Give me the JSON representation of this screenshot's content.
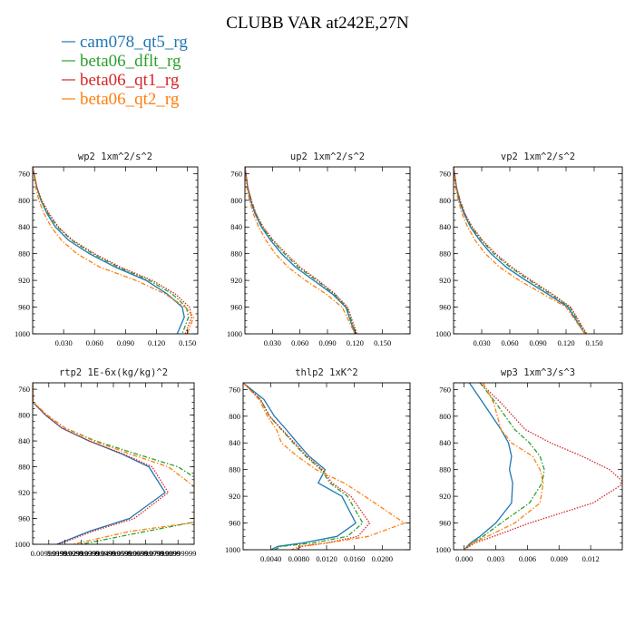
{
  "title": "CLUBB VAR at242E,27N",
  "legend": [
    {
      "label": "cam078_qt5_rg",
      "color": "#1f77b4",
      "dash": "solid"
    },
    {
      "label": "beta06_dflt_rg",
      "color": "#2ca02c",
      "dash": "dashdot"
    },
    {
      "label": "beta06_qt1_rg",
      "color": "#d62728",
      "dash": "dotted"
    },
    {
      "label": "beta06_qt2_rg",
      "color": "#ff7f0e",
      "dash": "dashdot"
    }
  ],
  "chart_data": [
    {
      "type": "line",
      "title": "wp2  1xm^2/s^2",
      "xlim": [
        0,
        0.16
      ],
      "ylim": [
        1000,
        750
      ],
      "y_inverted": true,
      "xticks": [
        0.03,
        0.06,
        0.09,
        0.12,
        0.15
      ],
      "xtick_labels": [
        "0.030",
        "0.060",
        "0.090",
        "0.120",
        "0.150"
      ],
      "yticks": [
        760,
        800,
        840,
        880,
        920,
        960,
        1000
      ],
      "ytick_labels": [
        "760",
        "800",
        "840",
        "880",
        "920",
        "960",
        "1000"
      ],
      "series": [
        {
          "x": [
            0.0,
            0.004,
            0.008,
            0.014,
            0.022,
            0.035,
            0.055,
            0.08,
            0.11,
            0.13,
            0.145,
            0.147,
            0.14
          ],
          "y": [
            750,
            780,
            800,
            820,
            840,
            860,
            880,
            900,
            920,
            940,
            960,
            975,
            1000
          ]
        },
        {
          "x": [
            0.0,
            0.004,
            0.008,
            0.015,
            0.024,
            0.038,
            0.058,
            0.083,
            0.113,
            0.135,
            0.149,
            0.151,
            0.145
          ],
          "y": [
            750,
            780,
            800,
            820,
            840,
            860,
            880,
            900,
            920,
            940,
            960,
            975,
            1000
          ]
        },
        {
          "x": [
            0.0,
            0.004,
            0.009,
            0.016,
            0.025,
            0.039,
            0.06,
            0.085,
            0.116,
            0.138,
            0.152,
            0.154,
            0.148
          ],
          "y": [
            750,
            780,
            800,
            820,
            840,
            860,
            880,
            900,
            920,
            940,
            960,
            975,
            1000
          ]
        },
        {
          "x": [
            0.0,
            0.003,
            0.006,
            0.011,
            0.018,
            0.028,
            0.043,
            0.065,
            0.1,
            0.128,
            0.148,
            0.156,
            0.15
          ],
          "y": [
            750,
            780,
            800,
            820,
            840,
            860,
            880,
            900,
            920,
            940,
            960,
            975,
            1000
          ]
        }
      ]
    },
    {
      "type": "line",
      "title": "up2  1xm^2/s^2",
      "xlim": [
        0,
        0.18
      ],
      "ylim": [
        1000,
        750
      ],
      "y_inverted": true,
      "xticks": [
        0.03,
        0.06,
        0.09,
        0.12,
        0.15
      ],
      "xtick_labels": [
        "0.030",
        "0.060",
        "0.090",
        "0.120",
        "0.150"
      ],
      "yticks": [
        760,
        800,
        840,
        880,
        920,
        960,
        1000
      ],
      "ytick_labels": [
        "760",
        "800",
        "840",
        "880",
        "920",
        "960",
        "1000"
      ],
      "series": [
        {
          "x": [
            0.0,
            0.003,
            0.006,
            0.011,
            0.018,
            0.028,
            0.04,
            0.055,
            0.075,
            0.095,
            0.11,
            0.12
          ],
          "y": [
            750,
            780,
            800,
            820,
            840,
            860,
            880,
            900,
            920,
            940,
            960,
            1000
          ]
        },
        {
          "x": [
            0.0,
            0.003,
            0.007,
            0.012,
            0.019,
            0.03,
            0.043,
            0.058,
            0.078,
            0.097,
            0.111,
            0.121
          ],
          "y": [
            750,
            780,
            800,
            820,
            840,
            860,
            880,
            900,
            920,
            940,
            960,
            1000
          ]
        },
        {
          "x": [
            0.0,
            0.003,
            0.007,
            0.012,
            0.02,
            0.031,
            0.045,
            0.06,
            0.08,
            0.098,
            0.112,
            0.122
          ],
          "y": [
            750,
            780,
            800,
            820,
            840,
            860,
            880,
            900,
            920,
            940,
            960,
            1000
          ]
        },
        {
          "x": [
            0.0,
            0.002,
            0.005,
            0.009,
            0.015,
            0.023,
            0.033,
            0.047,
            0.066,
            0.088,
            0.106,
            0.12
          ],
          "y": [
            750,
            780,
            800,
            820,
            840,
            860,
            880,
            900,
            920,
            940,
            960,
            1000
          ]
        }
      ]
    },
    {
      "type": "line",
      "title": "vp2  1xm^2/s^2",
      "xlim": [
        0,
        0.18
      ],
      "ylim": [
        1000,
        750
      ],
      "y_inverted": true,
      "xticks": [
        0.03,
        0.06,
        0.09,
        0.12,
        0.15
      ],
      "xtick_labels": [
        "0.030",
        "0.060",
        "0.090",
        "0.120",
        "0.150"
      ],
      "yticks": [
        760,
        800,
        840,
        880,
        920,
        960,
        1000
      ],
      "ytick_labels": [
        "760",
        "800",
        "840",
        "880",
        "920",
        "960",
        "1000"
      ],
      "series": [
        {
          "x": [
            0.0,
            0.003,
            0.006,
            0.011,
            0.018,
            0.028,
            0.04,
            0.056,
            0.077,
            0.1,
            0.122,
            0.14
          ],
          "y": [
            750,
            780,
            800,
            820,
            840,
            860,
            880,
            900,
            920,
            940,
            960,
            1000
          ]
        },
        {
          "x": [
            0.0,
            0.003,
            0.007,
            0.012,
            0.019,
            0.03,
            0.043,
            0.06,
            0.081,
            0.103,
            0.124,
            0.141
          ],
          "y": [
            750,
            780,
            800,
            820,
            840,
            860,
            880,
            900,
            920,
            940,
            960,
            1000
          ]
        },
        {
          "x": [
            0.0,
            0.003,
            0.007,
            0.012,
            0.02,
            0.031,
            0.045,
            0.062,
            0.083,
            0.105,
            0.125,
            0.142
          ],
          "y": [
            750,
            780,
            800,
            820,
            840,
            860,
            880,
            900,
            920,
            940,
            960,
            1000
          ]
        },
        {
          "x": [
            0.0,
            0.002,
            0.005,
            0.009,
            0.015,
            0.023,
            0.034,
            0.049,
            0.07,
            0.095,
            0.12,
            0.14
          ],
          "y": [
            750,
            780,
            800,
            820,
            840,
            860,
            880,
            900,
            920,
            940,
            960,
            1000
          ]
        }
      ]
    },
    {
      "type": "line",
      "title": "rtp2  1E-6x(kg/kg)^2",
      "xlim": [
        0,
        1e-05
      ],
      "ylim": [
        1000,
        750
      ],
      "y_inverted": true,
      "xticks": [
        1e-06,
        2e-06,
        3e-06,
        4e-06,
        5e-06,
        6e-06,
        7e-06,
        8e-06,
        9e-06
      ],
      "xtick_labels": [
        "0.00999999",
        "0.01999999",
        "0.02999999",
        "0.03999999",
        "0.04999999",
        "0.05999999",
        "0.06999999",
        "0.07999999",
        "0.08999999"
      ],
      "yticks": [
        760,
        800,
        840,
        880,
        920,
        960,
        1000
      ],
      "ytick_labels": [
        "760",
        "800",
        "840",
        "880",
        "920",
        "960",
        "1000"
      ],
      "series": [
        {
          "x": [
            0.0,
            3e-09,
            8e-07,
            1.8e-06,
            3.5e-06,
            5.5e-06,
            7.2e-06,
            8.2e-06,
            6e-06,
            3.5e-06,
            1.5e-06
          ],
          "y": [
            750,
            780,
            800,
            820,
            840,
            860,
            880,
            920,
            960,
            980,
            1000
          ]
        },
        {
          "x": [
            0.0,
            4e-08,
            9e-07,
            2e-06,
            3.9e-06,
            6.4e-06,
            9e-06,
            1.15e-05,
            1.12e-05,
            7e-06,
            3e-06
          ],
          "y": [
            750,
            780,
            800,
            820,
            840,
            860,
            880,
            920,
            960,
            980,
            1000
          ]
        },
        {
          "x": [
            0.0,
            3e-08,
            8e-07,
            1.8e-06,
            3.5e-06,
            5.6e-06,
            7.4e-06,
            8.4e-06,
            6.3e-06,
            3.7e-06,
            1.6e-06
          ],
          "y": [
            750,
            780,
            800,
            820,
            840,
            860,
            880,
            920,
            960,
            980,
            1000
          ]
        },
        {
          "x": [
            0.0,
            4e-08,
            9e-07,
            2e-06,
            3.8e-06,
            6e-06,
            8.4e-06,
            1.05e-05,
            1.18e-05,
            6e-06,
            2.5e-06
          ],
          "y": [
            750,
            780,
            800,
            820,
            840,
            860,
            880,
            920,
            960,
            980,
            1000
          ]
        }
      ]
    },
    {
      "type": "line",
      "title": "thlp2  1xK^2",
      "xlim": [
        0,
        0.024
      ],
      "ylim": [
        1000,
        750
      ],
      "y_inverted": true,
      "xticks": [
        0.004,
        0.008,
        0.012,
        0.016,
        0.02
      ],
      "xtick_labels": [
        "0.0040",
        "0.0080",
        "0.0120",
        "0.0160",
        "0.0200"
      ],
      "yticks": [
        760,
        800,
        840,
        880,
        920,
        960,
        1000
      ],
      "ytick_labels": [
        "760",
        "800",
        "840",
        "880",
        "920",
        "960",
        "1000"
      ],
      "series": [
        {
          "x": [
            0.0,
            0.003,
            0.0045,
            0.0062,
            0.0078,
            0.0095,
            0.0118,
            0.0108,
            0.0142,
            0.0162,
            0.0135,
            0.0085,
            0.005,
            0.004
          ],
          "y": [
            750,
            775,
            800,
            820,
            840,
            860,
            880,
            900,
            920,
            960,
            980,
            990,
            995,
            1000
          ]
        },
        {
          "x": [
            0.0,
            0.0025,
            0.0038,
            0.0055,
            0.0072,
            0.009,
            0.0112,
            0.0125,
            0.015,
            0.0172,
            0.015,
            0.01,
            0.0055,
            0.0045
          ],
          "y": [
            750,
            775,
            800,
            820,
            840,
            860,
            880,
            900,
            920,
            960,
            980,
            990,
            995,
            1000
          ]
        },
        {
          "x": [
            0.0,
            0.0025,
            0.0038,
            0.0056,
            0.0074,
            0.0092,
            0.0114,
            0.0128,
            0.0155,
            0.0182,
            0.0165,
            0.012,
            0.0085,
            0.0075
          ],
          "y": [
            750,
            775,
            800,
            820,
            840,
            860,
            880,
            900,
            920,
            960,
            980,
            990,
            995,
            1000
          ]
        },
        {
          "x": [
            0.0,
            0.0023,
            0.0035,
            0.0048,
            0.0055,
            0.0078,
            0.0105,
            0.0145,
            0.0175,
            0.0232,
            0.018,
            0.012,
            0.008,
            0.007
          ],
          "y": [
            750,
            775,
            800,
            820,
            840,
            860,
            880,
            900,
            920,
            960,
            980,
            990,
            995,
            1000
          ]
        }
      ]
    },
    {
      "type": "line",
      "title": "wp3  1xm^3/s^3",
      "xlim": [
        -0.001,
        0.015
      ],
      "ylim": [
        1000,
        750
      ],
      "y_inverted": true,
      "xticks": [
        0.0,
        0.003,
        0.006,
        0.009,
        0.012
      ],
      "xtick_labels": [
        "0.000",
        "0.003",
        "0.006",
        "0.009",
        "0.012"
      ],
      "yticks": [
        760,
        800,
        840,
        880,
        920,
        960,
        1000
      ],
      "ytick_labels": [
        "760",
        "800",
        "840",
        "880",
        "920",
        "960",
        "1000"
      ],
      "series": [
        {
          "x": [
            0.0005,
            0.0018,
            0.0035,
            0.0042,
            0.0045,
            0.0043,
            0.0046,
            0.0045,
            0.003,
            0.0015,
            0.0006,
            0.0
          ],
          "y": [
            750,
            780,
            820,
            840,
            860,
            880,
            900,
            930,
            960,
            980,
            990,
            1000
          ]
        },
        {
          "x": [
            0.0015,
            0.003,
            0.0048,
            0.0062,
            0.0072,
            0.0076,
            0.0074,
            0.0062,
            0.0035,
            0.0018,
            0.0008,
            0.0
          ],
          "y": [
            750,
            780,
            820,
            840,
            860,
            880,
            900,
            930,
            960,
            980,
            990,
            1000
          ]
        },
        {
          "x": [
            0.0015,
            0.0035,
            0.0058,
            0.0082,
            0.0112,
            0.0138,
            0.0152,
            0.0122,
            0.0062,
            0.0028,
            0.001,
            0.0
          ],
          "y": [
            750,
            780,
            820,
            840,
            860,
            880,
            900,
            930,
            960,
            980,
            990,
            1000
          ]
        },
        {
          "x": [
            0.0018,
            0.0028,
            0.0035,
            0.0045,
            0.0065,
            0.0072,
            0.0075,
            0.0072,
            0.0048,
            0.0022,
            0.0008,
            0.0
          ],
          "y": [
            750,
            780,
            820,
            840,
            860,
            880,
            900,
            930,
            960,
            980,
            990,
            1000
          ]
        }
      ]
    }
  ]
}
